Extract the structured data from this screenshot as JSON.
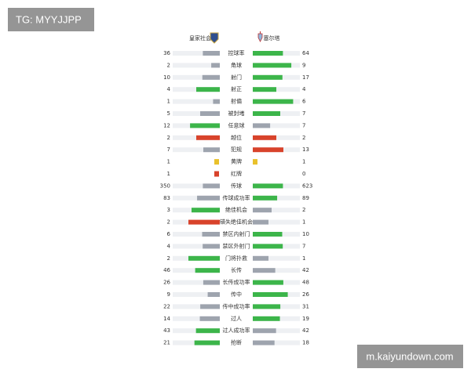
{
  "watermark": "TG: MYYJJPP",
  "site": "m.kaiyundown.com",
  "teams": {
    "home": "皇家社会",
    "away": "塞尔塔"
  },
  "stats": [
    {
      "label": "控球率",
      "home": 36,
      "away": 64,
      "home_color": "#9ea4ae",
      "away_color": "#3cb54a"
    },
    {
      "label": "角球",
      "home": 2,
      "away": 9,
      "home_color": "#9ea4ae",
      "away_color": "#3cb54a"
    },
    {
      "label": "射门",
      "home": 10,
      "away": 17,
      "home_color": "#9ea4ae",
      "away_color": "#3cb54a"
    },
    {
      "label": "射正",
      "home": 4,
      "away": 4,
      "home_color": "#3cb54a",
      "away_color": "#3cb54a"
    },
    {
      "label": "射偏",
      "home": 1,
      "away": 6,
      "home_color": "#9ea4ae",
      "away_color": "#3cb54a"
    },
    {
      "label": "被封堵",
      "home": 5,
      "away": 7,
      "home_color": "#9ea4ae",
      "away_color": "#3cb54a"
    },
    {
      "label": "任意球",
      "home": 12,
      "away": 7,
      "home_color": "#3cb54a",
      "away_color": "#9ea4ae"
    },
    {
      "label": "越位",
      "home": 2,
      "away": 2,
      "home_color": "#d8432b",
      "away_color": "#d8432b"
    },
    {
      "label": "犯规",
      "home": 7,
      "away": 13,
      "home_color": "#9ea4ae",
      "away_color": "#d8432b"
    },
    {
      "label": "黄牌",
      "home": 1,
      "away": 1,
      "home_color": "#e9c12b",
      "away_color": "#e9c12b",
      "marker": "square"
    },
    {
      "label": "红牌",
      "home": 1,
      "away": 0,
      "home_color": "#d8432b",
      "away_color": null,
      "marker": "square"
    },
    {
      "label": "传球",
      "home": 350,
      "away": 623,
      "home_color": "#9ea4ae",
      "away_color": "#3cb54a"
    },
    {
      "label": "传球成功率",
      "home": 83,
      "away": 89,
      "home_color": "#9ea4ae",
      "away_color": "#3cb54a"
    },
    {
      "label": "绝佳机会",
      "home": 3,
      "away": 2,
      "home_color": "#3cb54a",
      "away_color": "#9ea4ae"
    },
    {
      "label": "错失绝佳机会",
      "home": 2,
      "away": 1,
      "home_color": "#d8432b",
      "away_color": "#9ea4ae"
    },
    {
      "label": "禁区内射门",
      "home": 6,
      "away": 10,
      "home_color": "#9ea4ae",
      "away_color": "#3cb54a"
    },
    {
      "label": "禁区外射门",
      "home": 4,
      "away": 7,
      "home_color": "#9ea4ae",
      "away_color": "#3cb54a"
    },
    {
      "label": "门将扑救",
      "home": 2,
      "away": 1,
      "home_color": "#3cb54a",
      "away_color": "#9ea4ae"
    },
    {
      "label": "长传",
      "home": 46,
      "away": 42,
      "home_color": "#3cb54a",
      "away_color": "#9ea4ae"
    },
    {
      "label": "长传成功率",
      "home": 26,
      "away": 48,
      "home_color": "#9ea4ae",
      "away_color": "#3cb54a"
    },
    {
      "label": "传中",
      "home": 9,
      "away": 26,
      "home_color": "#9ea4ae",
      "away_color": "#3cb54a"
    },
    {
      "label": "传中成功率",
      "home": 22,
      "away": 31,
      "home_color": "#9ea4ae",
      "away_color": "#3cb54a"
    },
    {
      "label": "过人",
      "home": 14,
      "away": 19,
      "home_color": "#9ea4ae",
      "away_color": "#3cb54a"
    },
    {
      "label": "过人成功率",
      "home": 43,
      "away": 42,
      "home_color": "#3cb54a",
      "away_color": "#9ea4ae"
    },
    {
      "label": "抢断",
      "home": 21,
      "away": 18,
      "home_color": "#3cb54a",
      "away_color": "#9ea4ae"
    }
  ]
}
